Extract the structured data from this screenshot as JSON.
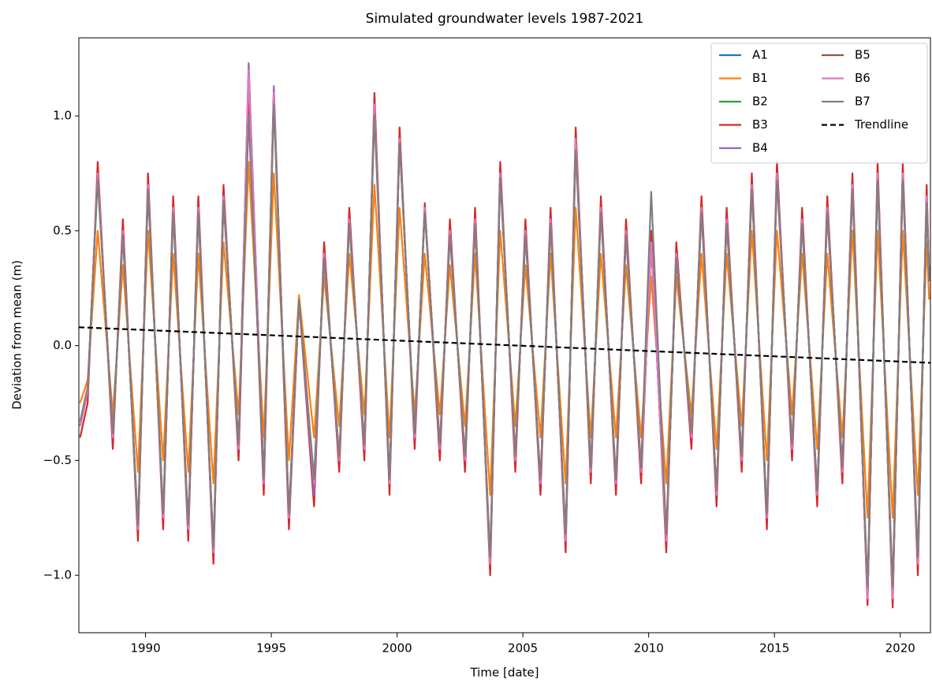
{
  "chart_data": {
    "type": "line",
    "title": "Simulated groundwater levels 1987-2021",
    "xlabel": "Time [date]",
    "ylabel": "Deviation from mean (m)",
    "xlim": [
      1987.35,
      2021.2
    ],
    "ylim": [
      -1.25,
      1.34
    ],
    "xticks": [
      1990,
      1995,
      2000,
      2005,
      2010,
      2015,
      2020
    ],
    "yticks": [
      {
        "value": -1.0,
        "label": "−1.0"
      },
      {
        "value": -0.5,
        "label": "−0.5"
      },
      {
        "value": 0.0,
        "label": "0.0"
      },
      0.5,
      {
        "value": 1.0,
        "label": "1.0"
      }
    ],
    "legend": "upper right",
    "x": [
      1987.4,
      1987.7,
      1988.1,
      1988.7,
      1989.1,
      1989.7,
      1990.1,
      1990.7,
      1991.1,
      1991.7,
      1992.1,
      1992.7,
      1993.1,
      1993.7,
      1994.1,
      1994.7,
      1995.1,
      1995.7,
      1996.1,
      1996.7,
      1997.1,
      1997.7,
      1998.1,
      1998.7,
      1999.1,
      1999.7,
      2000.1,
      2000.7,
      2001.1,
      2001.7,
      2002.1,
      2002.7,
      2003.1,
      2003.7,
      2004.1,
      2004.7,
      2005.1,
      2005.7,
      2006.1,
      2006.7,
      2007.1,
      2007.7,
      2008.1,
      2008.7,
      2009.1,
      2009.7,
      2010.1,
      2010.7,
      2011.1,
      2011.7,
      2012.1,
      2012.7,
      2013.1,
      2013.7,
      2014.1,
      2014.7,
      2015.1,
      2015.7,
      2016.1,
      2016.7,
      2017.1,
      2017.7,
      2018.1,
      2018.7,
      2019.1,
      2019.7,
      2020.1,
      2020.7,
      2021.05,
      2021.15
    ],
    "series": [
      {
        "name": "A1",
        "color": "#1f77b4",
        "values": [
          -0.35,
          -0.2,
          0.75,
          -0.4,
          0.5,
          -0.8,
          0.7,
          -0.75,
          0.6,
          -0.8,
          0.6,
          -0.9,
          0.65,
          -0.45,
          1.2,
          -0.6,
          1.1,
          -0.75,
          0.2,
          -0.6,
          0.4,
          -0.5,
          0.55,
          -0.45,
          1.05,
          -0.6,
          0.9,
          -0.4,
          0.6,
          -0.45,
          0.5,
          -0.5,
          0.55,
          -0.95,
          0.75,
          -0.5,
          0.5,
          -0.6,
          0.55,
          -0.85,
          0.9,
          -0.55,
          0.6,
          -0.6,
          0.5,
          -0.55,
          0.45,
          -0.85,
          0.4,
          -0.4,
          0.6,
          -0.65,
          0.55,
          -0.5,
          0.7,
          -0.75,
          0.75,
          -0.45,
          0.55,
          -0.65,
          0.6,
          -0.55,
          0.7,
          -1.1,
          0.75,
          -1.1,
          0.75,
          -0.95,
          0.65,
          0.3
        ]
      },
      {
        "name": "B1",
        "color": "#ff7f0e",
        "values": [
          -0.25,
          -0.15,
          0.5,
          -0.3,
          0.35,
          -0.55,
          0.5,
          -0.5,
          0.4,
          -0.55,
          0.4,
          -0.6,
          0.45,
          -0.3,
          0.8,
          -0.4,
          0.75,
          -0.5,
          0.22,
          -0.4,
          0.3,
          -0.35,
          0.4,
          -0.3,
          0.7,
          -0.4,
          0.6,
          -0.3,
          0.4,
          -0.3,
          0.35,
          -0.35,
          0.4,
          -0.65,
          0.5,
          -0.35,
          0.35,
          -0.4,
          0.4,
          -0.6,
          0.6,
          -0.4,
          0.4,
          -0.4,
          0.35,
          -0.4,
          0.3,
          -0.6,
          0.3,
          -0.3,
          0.4,
          -0.45,
          0.4,
          -0.35,
          0.5,
          -0.5,
          0.5,
          -0.3,
          0.4,
          -0.45,
          0.4,
          -0.4,
          0.5,
          -0.75,
          0.5,
          -0.75,
          0.5,
          -0.65,
          0.45,
          0.2
        ]
      },
      {
        "name": "B2",
        "color": "#2ca02c",
        "values": [
          -0.35,
          -0.2,
          0.75,
          -0.4,
          0.5,
          -0.8,
          0.7,
          -0.75,
          0.6,
          -0.8,
          0.6,
          -0.9,
          0.65,
          -0.45,
          1.2,
          -0.6,
          1.1,
          -0.75,
          0.2,
          -0.6,
          0.4,
          -0.5,
          0.55,
          -0.45,
          1.05,
          -0.6,
          0.9,
          -0.4,
          0.6,
          -0.45,
          0.5,
          -0.5,
          0.55,
          -0.95,
          0.75,
          -0.5,
          0.5,
          -0.6,
          0.55,
          -0.85,
          0.9,
          -0.55,
          0.6,
          -0.6,
          0.5,
          -0.55,
          0.45,
          -0.85,
          0.4,
          -0.4,
          0.6,
          -0.65,
          0.55,
          -0.5,
          0.7,
          -0.75,
          0.75,
          -0.45,
          0.55,
          -0.65,
          0.6,
          -0.55,
          0.7,
          -1.1,
          0.75,
          -1.1,
          0.75,
          -0.95,
          0.65,
          0.3
        ]
      },
      {
        "name": "B3",
        "color": "#d62728",
        "values": [
          -0.4,
          -0.25,
          0.8,
          -0.45,
          0.55,
          -0.85,
          0.75,
          -0.8,
          0.65,
          -0.85,
          0.65,
          -0.95,
          0.7,
          -0.5,
          1.1,
          -0.65,
          1.1,
          -0.8,
          0.2,
          -0.7,
          0.45,
          -0.55,
          0.6,
          -0.5,
          1.1,
          -0.65,
          0.95,
          -0.45,
          0.62,
          -0.5,
          0.55,
          -0.55,
          0.6,
          -1.0,
          0.8,
          -0.55,
          0.55,
          -0.65,
          0.6,
          -0.9,
          0.95,
          -0.6,
          0.65,
          -0.65,
          0.55,
          -0.6,
          0.5,
          -0.9,
          0.45,
          -0.45,
          0.65,
          -0.7,
          0.6,
          -0.55,
          0.75,
          -0.8,
          0.8,
          -0.5,
          0.6,
          -0.7,
          0.65,
          -0.6,
          0.75,
          -1.13,
          0.8,
          -1.14,
          0.79,
          -1.0,
          0.7,
          0.3
        ]
      },
      {
        "name": "B4",
        "color": "#9467bd",
        "values": [
          -0.35,
          -0.2,
          0.75,
          -0.4,
          0.5,
          -0.8,
          0.7,
          -0.75,
          0.6,
          -0.8,
          0.6,
          -0.9,
          0.65,
          -0.45,
          1.23,
          -0.6,
          1.13,
          -0.75,
          0.2,
          -0.65,
          0.4,
          -0.5,
          0.55,
          -0.45,
          1.05,
          -0.6,
          0.9,
          -0.4,
          0.6,
          -0.45,
          0.5,
          -0.5,
          0.55,
          -0.95,
          0.75,
          -0.5,
          0.5,
          -0.6,
          0.55,
          -0.85,
          0.9,
          -0.55,
          0.6,
          -0.6,
          0.5,
          -0.55,
          0.45,
          -0.85,
          0.4,
          -0.4,
          0.6,
          -0.65,
          0.55,
          -0.5,
          0.7,
          -0.75,
          0.75,
          -0.45,
          0.55,
          -0.65,
          0.6,
          -0.55,
          0.7,
          -1.1,
          0.75,
          -1.1,
          0.75,
          -0.95,
          0.65,
          0.3
        ]
      },
      {
        "name": "B5",
        "color": "#8c564b",
        "values": [
          -0.35,
          -0.2,
          0.75,
          -0.4,
          0.5,
          -0.8,
          0.7,
          -0.75,
          0.6,
          -0.8,
          0.6,
          -0.9,
          0.65,
          -0.45,
          1.2,
          -0.6,
          1.1,
          -0.75,
          0.2,
          -0.6,
          0.4,
          -0.5,
          0.55,
          -0.45,
          1.05,
          -0.6,
          0.9,
          -0.4,
          0.6,
          -0.45,
          0.5,
          -0.5,
          0.55,
          -0.95,
          0.75,
          -0.5,
          0.5,
          -0.6,
          0.55,
          -0.85,
          0.9,
          -0.55,
          0.6,
          -0.6,
          0.5,
          -0.55,
          0.45,
          -0.85,
          0.4,
          -0.4,
          0.6,
          -0.65,
          0.55,
          -0.5,
          0.7,
          -0.75,
          0.75,
          -0.45,
          0.55,
          -0.65,
          0.6,
          -0.55,
          0.7,
          -1.1,
          0.75,
          -1.1,
          0.75,
          -0.95,
          0.65,
          0.3
        ]
      },
      {
        "name": "B6",
        "color": "#e377c2",
        "values": [
          -0.35,
          -0.2,
          0.75,
          -0.4,
          0.5,
          -0.8,
          0.7,
          -0.75,
          0.6,
          -0.8,
          0.6,
          -0.9,
          0.65,
          -0.45,
          1.2,
          -0.6,
          1.1,
          -0.75,
          0.2,
          -0.6,
          0.4,
          -0.5,
          0.55,
          -0.45,
          1.05,
          -0.6,
          0.9,
          -0.4,
          0.6,
          -0.45,
          0.5,
          -0.5,
          0.55,
          -0.95,
          0.75,
          -0.5,
          0.5,
          -0.6,
          0.55,
          -0.85,
          0.9,
          -0.55,
          0.6,
          -0.6,
          0.5,
          -0.55,
          0.45,
          -0.85,
          0.4,
          -0.4,
          0.6,
          -0.65,
          0.55,
          -0.5,
          0.7,
          -0.75,
          0.75,
          -0.45,
          0.55,
          -0.65,
          0.6,
          -0.55,
          0.7,
          -1.1,
          0.75,
          -1.1,
          0.75,
          -0.95,
          0.65,
          0.3
        ]
      },
      {
        "name": "B7",
        "color": "#7f7f7f",
        "values": [
          -0.33,
          -0.18,
          0.72,
          -0.38,
          0.48,
          -0.78,
          0.68,
          -0.73,
          0.58,
          -0.78,
          0.58,
          -0.88,
          0.63,
          -0.43,
          1.0,
          -0.58,
          1.05,
          -0.73,
          0.2,
          -0.58,
          0.38,
          -0.48,
          0.53,
          -0.43,
          1.0,
          -0.58,
          0.88,
          -0.38,
          0.58,
          -0.43,
          0.48,
          -0.48,
          0.53,
          -0.92,
          0.73,
          -0.48,
          0.48,
          -0.58,
          0.53,
          -0.82,
          0.85,
          -0.53,
          0.58,
          -0.58,
          0.48,
          -0.53,
          0.67,
          -0.82,
          0.38,
          -0.38,
          0.58,
          -0.63,
          0.53,
          -0.48,
          0.68,
          -0.73,
          0.72,
          -0.43,
          0.53,
          -0.63,
          0.58,
          -0.53,
          0.68,
          -1.05,
          0.72,
          -1.05,
          0.72,
          -0.92,
          0.62,
          0.28
        ]
      }
    ],
    "trendline": {
      "name": "Trendline",
      "color": "#000000",
      "x": [
        1987.35,
        2021.2
      ],
      "values": [
        0.08,
        -0.075
      ]
    }
  }
}
